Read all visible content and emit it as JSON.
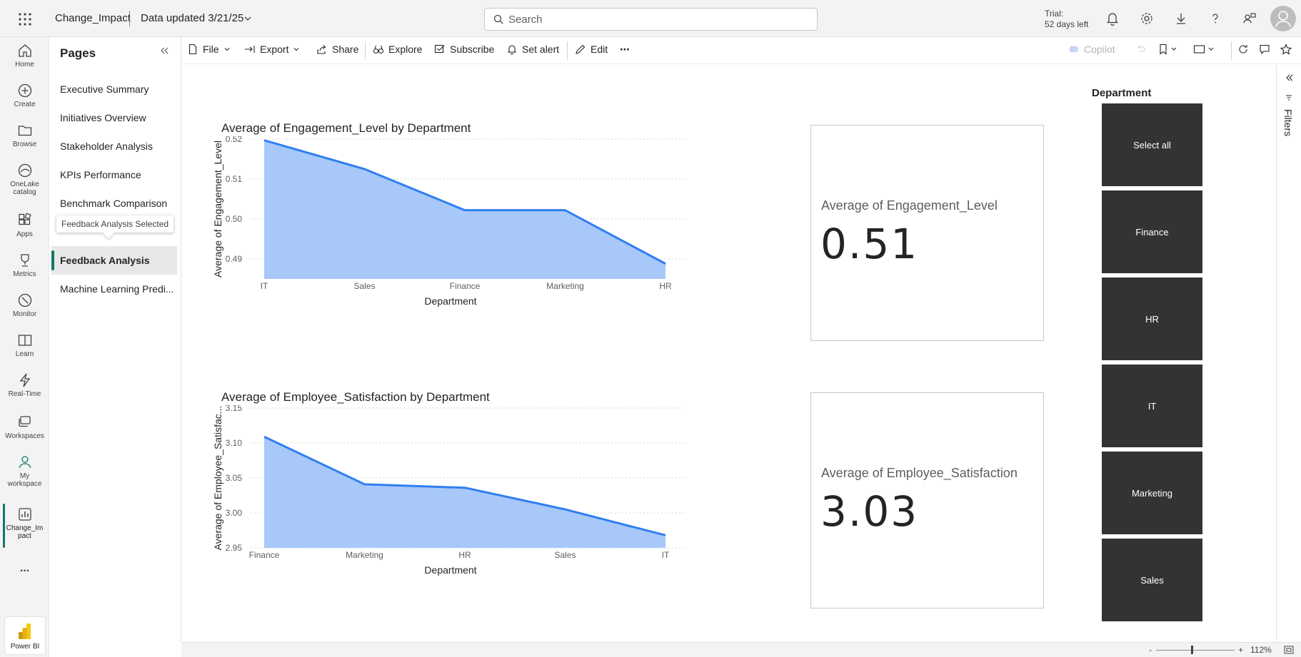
{
  "header": {
    "workspace_name": "Change_Impact",
    "data_updated": "Data updated 3/21/25",
    "search_placeholder": "Search",
    "trial_line1": "Trial:",
    "trial_line2": "52 days left"
  },
  "leftnav": {
    "items": [
      {
        "label": "Home",
        "icon": "home-icon"
      },
      {
        "label": "Create",
        "icon": "create-icon"
      },
      {
        "label": "Browse",
        "icon": "folder-icon"
      },
      {
        "label": "OneLake catalog",
        "label2": "catalog",
        "label1": "OneLake",
        "icon": "onelake-icon"
      },
      {
        "label": "Apps",
        "icon": "apps-icon"
      },
      {
        "label": "Metrics",
        "icon": "trophy-icon"
      },
      {
        "label": "Monitor",
        "icon": "monitor-icon"
      },
      {
        "label": "Learn",
        "icon": "book-icon"
      },
      {
        "label": "Real-Time",
        "icon": "lightning-icon"
      },
      {
        "label": "Workspaces",
        "icon": "workspaces-icon"
      },
      {
        "label1": "My",
        "label2": "workspace",
        "icon": "person-icon"
      },
      {
        "label1": "Change_Im",
        "label2": "pact",
        "icon": "report-icon"
      }
    ],
    "more": "...",
    "powerbi_label": "Power BI"
  },
  "pages_pane": {
    "title": "Pages",
    "items": [
      "Executive Summary",
      "Initiatives Overview",
      "Stakeholder Analysis",
      "KPIs Performance",
      "Benchmark Comparison",
      "Feedback Analysis",
      "Machine Learning Predi..."
    ],
    "selected_index": 5,
    "tooltip": "Feedback Analysis Selected"
  },
  "actionbar": {
    "file": "File",
    "export": "Export",
    "share": "Share",
    "explore": "Explore",
    "subscribe": "Subscribe",
    "set_alert": "Set alert",
    "edit": "Edit",
    "more": "⋯",
    "copilot": "Copilot"
  },
  "chart_data": [
    {
      "type": "area",
      "title": "Average of Engagement_Level by Department",
      "xlabel": "Department",
      "ylabel": "Average of Engagement_Level",
      "categories": [
        "IT",
        "Sales",
        "Finance",
        "Marketing",
        "HR"
      ],
      "values": [
        0.5197,
        0.5125,
        0.5022,
        0.5022,
        0.4888
      ],
      "ylim": [
        0.485,
        0.52
      ],
      "yticks": [
        "0.52",
        "0.51",
        "0.50",
        "0.49"
      ],
      "ytick_values": [
        0.52,
        0.51,
        0.5,
        0.49
      ],
      "grid": true
    },
    {
      "type": "area",
      "title": "Average of Employee_Satisfaction by Department",
      "xlabel": "Department",
      "ylabel": "Average of Employee_Satisfac...",
      "categories": [
        "Finance",
        "Marketing",
        "HR",
        "Sales",
        "IT"
      ],
      "values": [
        3.109,
        3.041,
        3.036,
        3.005,
        2.968
      ],
      "ylim": [
        2.95,
        3.15
      ],
      "yticks": [
        "3.15",
        "3.10",
        "3.05",
        "3.00",
        "2.95"
      ],
      "ytick_values": [
        3.15,
        3.1,
        3.05,
        3.0,
        2.95
      ],
      "grid": true
    }
  ],
  "cards": [
    {
      "label": "Average of Engagement_Level",
      "value": "0.51"
    },
    {
      "label": "Average of Employee_Satisfaction",
      "value": "3.03"
    }
  ],
  "slicer": {
    "title": "Department",
    "options": [
      "Select all",
      "Finance",
      "HR",
      "IT",
      "Marketing",
      "Sales"
    ]
  },
  "filters": {
    "label": "Filters"
  },
  "status": {
    "zoom": "112%",
    "minus": "-",
    "plus": "+"
  },
  "colors": {
    "accent": "#117865",
    "series_line": "#2f7ff0",
    "series_fill": "#a8c8fa",
    "slicer_bg": "#333333"
  }
}
